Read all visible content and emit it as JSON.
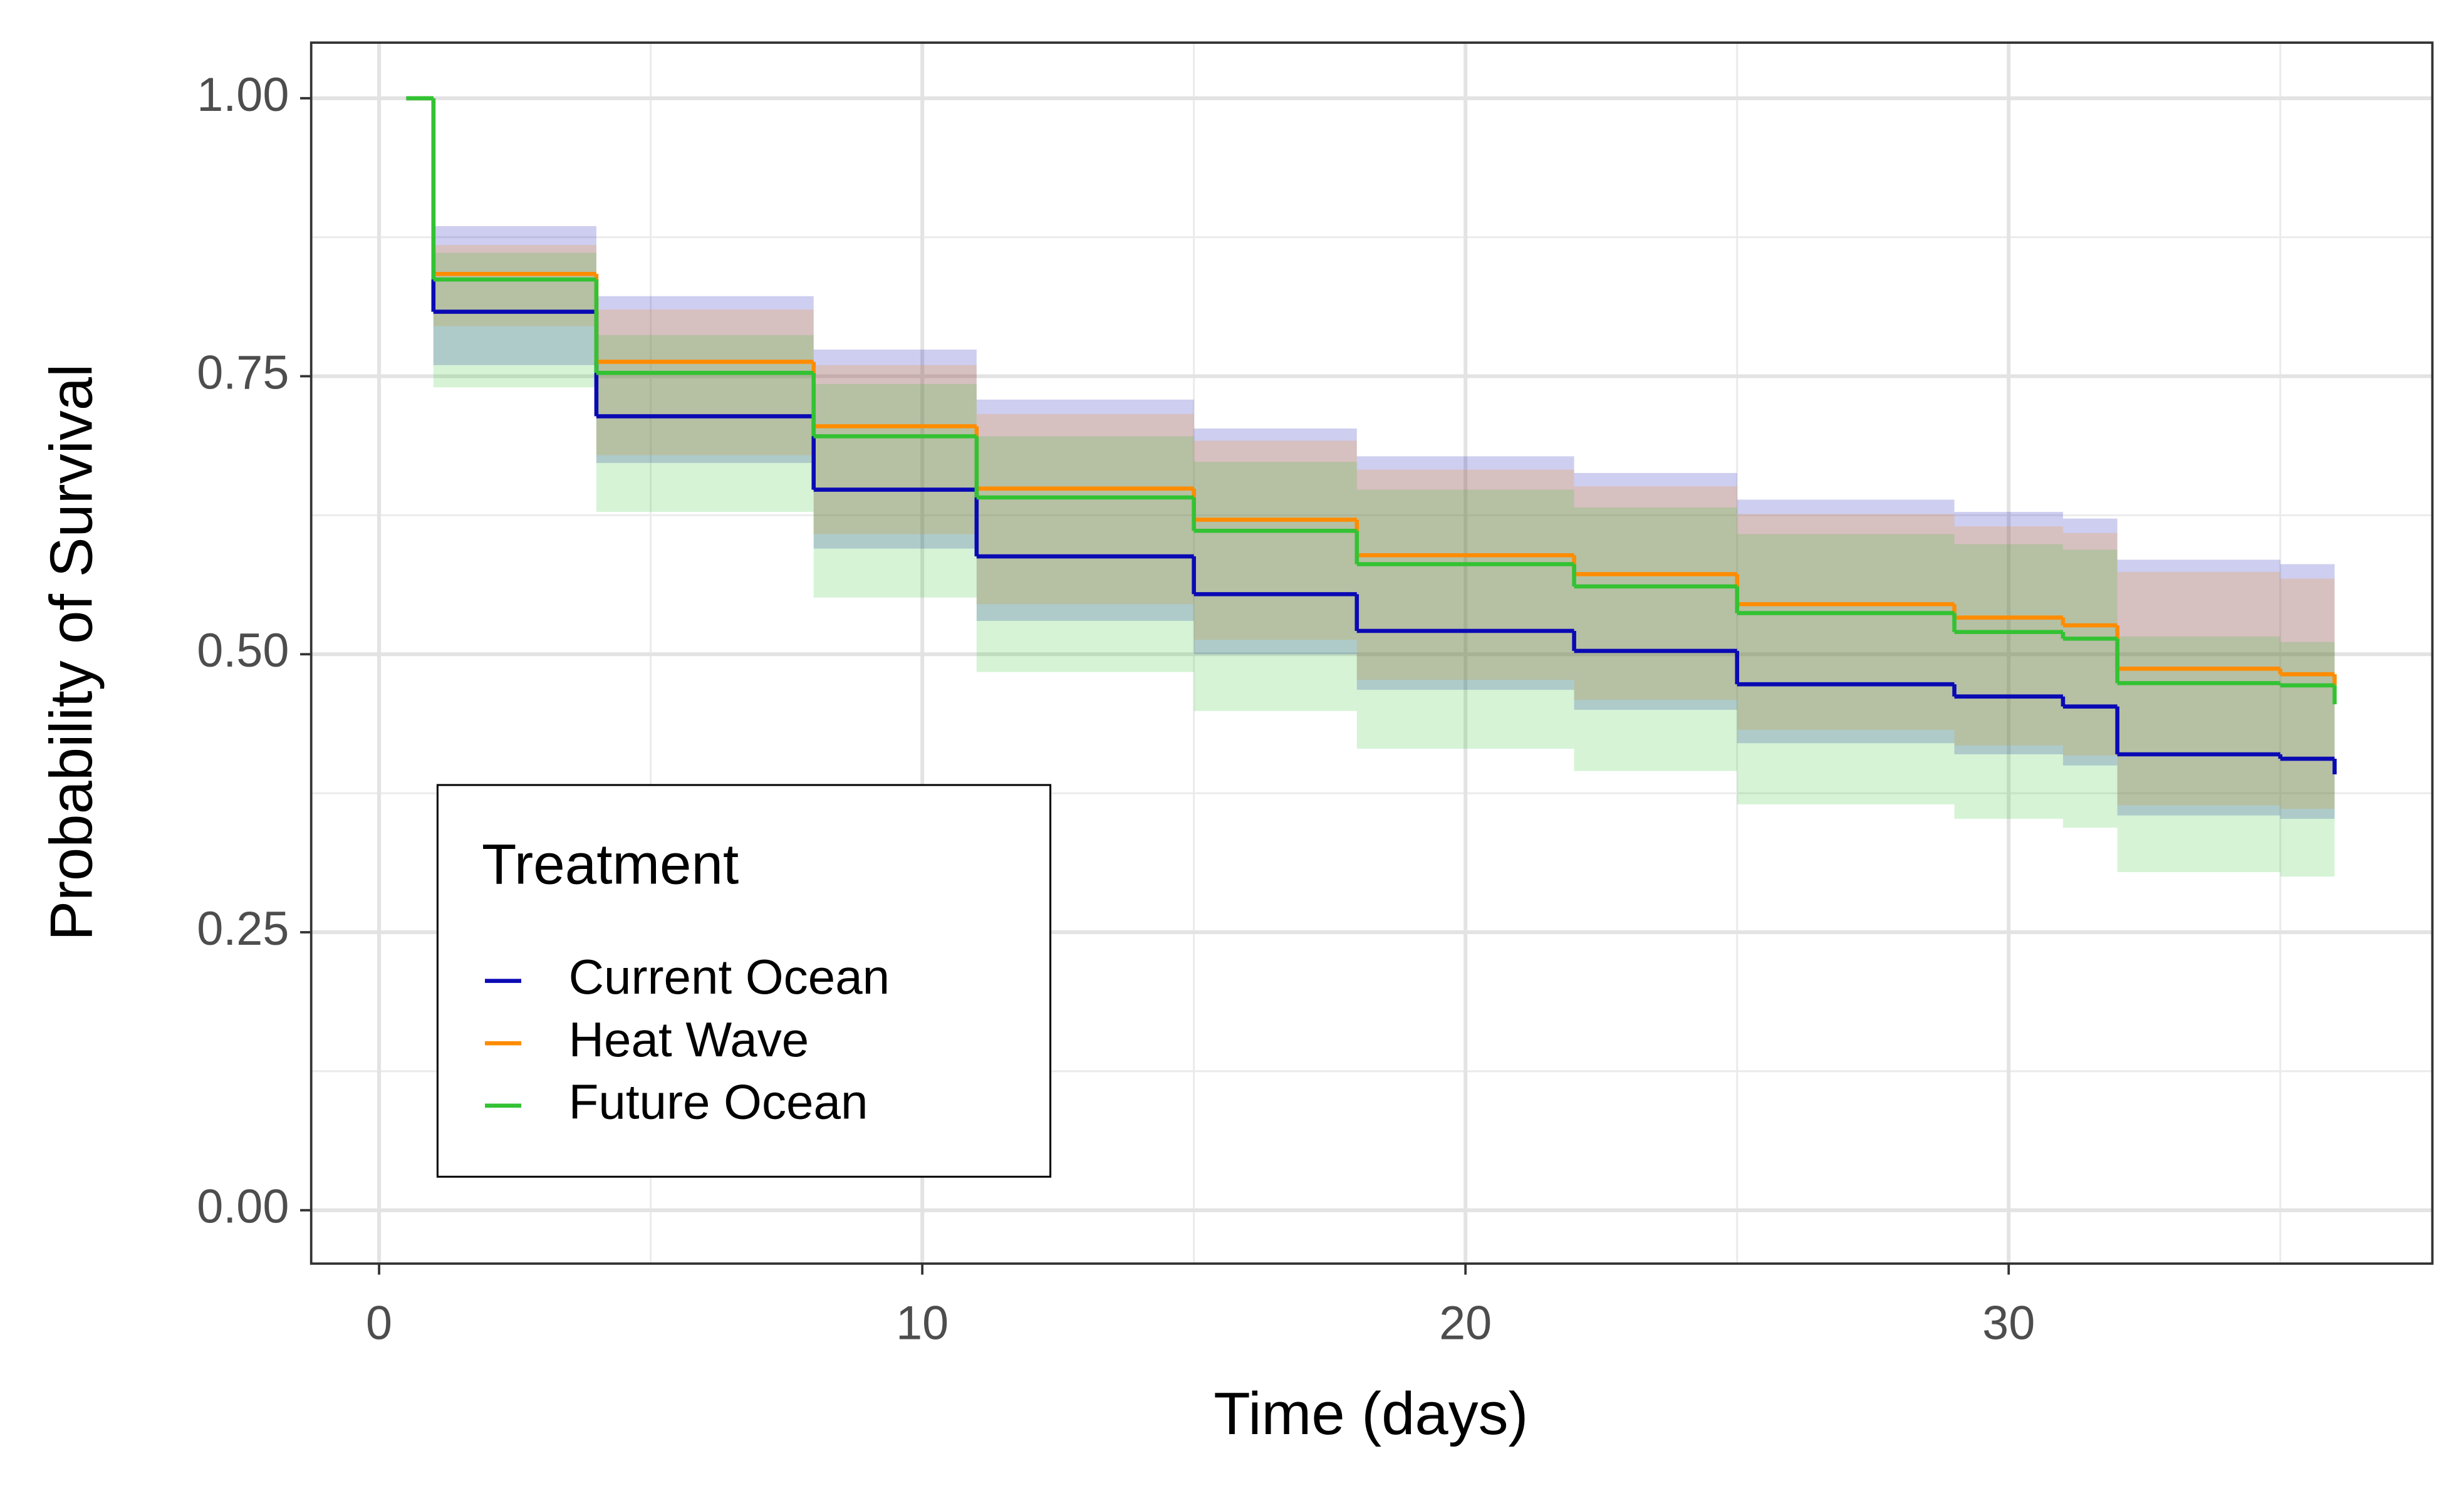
{
  "chart_data": {
    "type": "survival-step",
    "x_label": "Time (days)",
    "y_label": "Probability of Survival",
    "xlim": [
      -1.25,
      37.8
    ],
    "ylim": [
      -0.048,
      1.05
    ],
    "xticks": [
      0,
      10,
      20,
      30
    ],
    "yticks": [
      {
        "value": 0,
        "label": "0.00"
      },
      {
        "value": 0.25,
        "label": "0.25"
      },
      {
        "value": 0.5,
        "label": "0.50"
      },
      {
        "value": 0.75,
        "label": "0.75"
      },
      {
        "value": 1,
        "label": "1.00"
      }
    ],
    "grid": true,
    "legend_title": "Treatment",
    "legend_position": "bottom-left",
    "x": [
      0.5,
      1,
      4,
      8,
      11,
      15,
      18,
      22,
      25,
      29,
      31,
      32,
      35,
      36
    ],
    "series": [
      {
        "name": "Current Ocean",
        "color": "#0a0ab4",
        "values": [
          1,
          0.808,
          0.714,
          0.648,
          0.588,
          0.554,
          0.521,
          0.503,
          0.473,
          0.462,
          0.453,
          0.41,
          0.406,
          0.392
        ],
        "upper": [
          null,
          0.885,
          0.822,
          0.774,
          0.729,
          0.703,
          0.678,
          0.663,
          0.639,
          0.628,
          0.622,
          0.585,
          0.581,
          null
        ],
        "lower": [
          null,
          0.76,
          0.672,
          0.595,
          0.53,
          0.5,
          0.468,
          0.45,
          0.42,
          0.41,
          0.4,
          0.355,
          0.352,
          null
        ]
      },
      {
        "name": "Heat Wave",
        "color": "#ff8c00",
        "values": [
          1,
          0.842,
          0.763,
          0.705,
          0.649,
          0.621,
          0.589,
          0.572,
          0.545,
          0.533,
          0.526,
          0.487,
          0.482,
          0.472
        ],
        "upper": [
          null,
          0.868,
          0.81,
          0.76,
          0.716,
          0.692,
          0.666,
          0.651,
          0.626,
          0.615,
          0.609,
          0.574,
          0.568,
          null
        ],
        "lower": [
          null,
          0.795,
          0.679,
          0.608,
          0.545,
          0.513,
          0.477,
          0.459,
          0.432,
          0.418,
          0.409,
          0.364,
          0.361,
          null
        ]
      },
      {
        "name": "Future Ocean",
        "color": "#33c233",
        "values": [
          1,
          0.837,
          0.753,
          0.696,
          0.641,
          0.611,
          0.581,
          0.561,
          0.537,
          0.52,
          0.514,
          0.474,
          0.472,
          0.455
        ],
        "upper": [
          null,
          0.861,
          0.787,
          0.743,
          0.696,
          0.673,
          0.648,
          0.632,
          0.608,
          0.599,
          0.594,
          0.516,
          0.511,
          null
        ],
        "lower": [
          null,
          0.74,
          0.628,
          0.551,
          0.484,
          0.449,
          0.415,
          0.395,
          0.365,
          0.352,
          0.344,
          0.304,
          0.3,
          null
        ]
      }
    ]
  }
}
